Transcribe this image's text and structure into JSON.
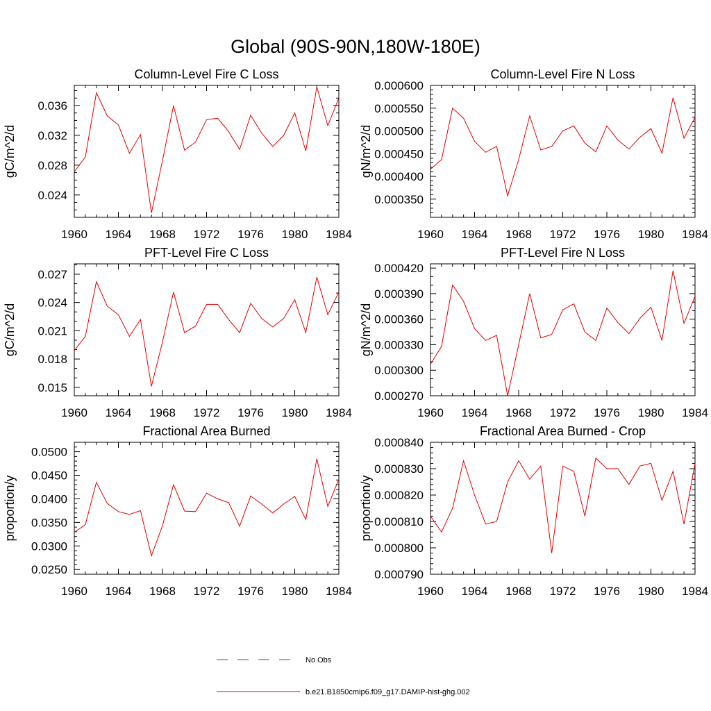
{
  "page_title": "Global (90S-90N,180W-180E)",
  "legend": {
    "entries": [
      {
        "label": "No Obs",
        "color": "#4a4a9a",
        "style": "dashed"
      },
      {
        "label": "b.e21.B1850cmip6.f09_g17.DAMIP-hist-ghg.002",
        "color": "#e00000",
        "style": "solid"
      }
    ]
  },
  "chart_data": [
    {
      "type": "line",
      "title": "Column-Level Fire C Loss",
      "ylabel": "gC/m^2/d",
      "xlim": [
        1960,
        1984
      ],
      "ylim": [
        0.021,
        0.0387
      ],
      "xticks": [
        1960,
        1964,
        1968,
        1972,
        1976,
        1980,
        1984
      ],
      "xtick_labels": [
        "1960",
        "1964",
        "1968",
        "1972",
        "1976",
        "1980",
        "1984"
      ],
      "yticks": [
        0.024,
        0.028,
        0.032,
        0.036
      ],
      "ytick_labels": [
        "0.024",
        "0.028",
        "0.032",
        "0.036"
      ],
      "ymin_ticks": [
        0.021,
        0.022,
        0.023,
        0.025,
        0.026,
        0.027,
        0.029,
        0.03,
        0.031,
        0.033,
        0.034,
        0.035,
        0.037,
        0.038
      ],
      "series": [
        {
          "color": "#e00000",
          "x": [
            1960,
            1961,
            1962,
            1963,
            1964,
            1965,
            1966,
            1967,
            1968,
            1969,
            1970,
            1971,
            1972,
            1973,
            1974,
            1975,
            1976,
            1977,
            1978,
            1979,
            1980,
            1981,
            1982,
            1983,
            1984
          ],
          "values": [
            0.0271,
            0.0291,
            0.0377,
            0.0346,
            0.0334,
            0.0296,
            0.0321,
            0.0216,
            0.0286,
            0.036,
            0.03,
            0.0311,
            0.0341,
            0.0343,
            0.0325,
            0.0301,
            0.0347,
            0.0323,
            0.0305,
            0.032,
            0.035,
            0.0299,
            0.0385,
            0.0333,
            0.037
          ]
        }
      ]
    },
    {
      "type": "line",
      "title": "Column-Level Fire N Loss",
      "ylabel": "gN/m^2/d",
      "xlim": [
        1960,
        1984
      ],
      "ylim": [
        0.00031,
        0.0006
      ],
      "xticks": [
        1960,
        1964,
        1968,
        1972,
        1976,
        1980,
        1984
      ],
      "xtick_labels": [
        "1960",
        "1964",
        "1968",
        "1972",
        "1976",
        "1980",
        "1984"
      ],
      "yticks": [
        0.00035,
        0.0004,
        0.00045,
        0.0005,
        0.00055,
        0.0006
      ],
      "ytick_labels": [
        "0.000350",
        "0.000400",
        "0.000450",
        "0.000500",
        "0.000550",
        "0.000600"
      ],
      "ymin_ticks": [
        0.00031,
        0.00032,
        0.00033,
        0.00034,
        0.00036,
        0.00037,
        0.00038,
        0.00039,
        0.00041,
        0.00042,
        0.00043,
        0.00044,
        0.00046,
        0.00047,
        0.00048,
        0.00049,
        0.00051,
        0.00052,
        0.00053,
        0.00054,
        0.00056,
        0.00057,
        0.00058,
        0.00059
      ],
      "series": [
        {
          "color": "#e00000",
          "x": [
            1960,
            1961,
            1962,
            1963,
            1964,
            1965,
            1966,
            1967,
            1968,
            1969,
            1970,
            1971,
            1972,
            1973,
            1974,
            1975,
            1976,
            1977,
            1978,
            1979,
            1980,
            1981,
            1982,
            1983,
            1984
          ],
          "values": [
            0.000416,
            0.000437,
            0.00055,
            0.000528,
            0.000477,
            0.000453,
            0.000466,
            0.000357,
            0.000437,
            0.000533,
            0.000458,
            0.000466,
            0.0005,
            0.000511,
            0.000473,
            0.000454,
            0.000511,
            0.00048,
            0.00046,
            0.000486,
            0.000505,
            0.000451,
            0.000573,
            0.000484,
            0.00053
          ]
        }
      ]
    },
    {
      "type": "line",
      "title": "PFT-Level Fire C Loss",
      "ylabel": "gC/m^2/d",
      "xlim": [
        1960,
        1984
      ],
      "ylim": [
        0.0141,
        0.0281
      ],
      "xticks": [
        1960,
        1964,
        1968,
        1972,
        1976,
        1980,
        1984
      ],
      "xtick_labels": [
        "1960",
        "1964",
        "1968",
        "1972",
        "1976",
        "1980",
        "1984"
      ],
      "yticks": [
        0.015,
        0.018,
        0.021,
        0.024,
        0.027
      ],
      "ytick_labels": [
        "0.015",
        "0.018",
        "0.021",
        "0.024",
        "0.027"
      ],
      "ymin_ticks": [
        0.016,
        0.017,
        0.019,
        0.02,
        0.022,
        0.023,
        0.025,
        0.026,
        0.028
      ],
      "series": [
        {
          "color": "#e00000",
          "x": [
            1960,
            1961,
            1962,
            1963,
            1964,
            1965,
            1966,
            1967,
            1968,
            1969,
            1970,
            1971,
            1972,
            1973,
            1974,
            1975,
            1976,
            1977,
            1978,
            1979,
            1980,
            1981,
            1982,
            1983,
            1984
          ],
          "values": [
            0.0189,
            0.0204,
            0.0262,
            0.0236,
            0.0227,
            0.0204,
            0.0222,
            0.0151,
            0.0198,
            0.0251,
            0.0208,
            0.0215,
            0.0238,
            0.0238,
            0.0222,
            0.0208,
            0.0239,
            0.0223,
            0.0214,
            0.0223,
            0.0243,
            0.0208,
            0.0267,
            0.0227,
            0.0251
          ]
        }
      ]
    },
    {
      "type": "line",
      "title": "PFT-Level Fire N Loss",
      "ylabel": "gN/m^2/d",
      "xlim": [
        1960,
        1984
      ],
      "ylim": [
        0.00027,
        0.000425
      ],
      "xticks": [
        1960,
        1964,
        1968,
        1972,
        1976,
        1980,
        1984
      ],
      "xtick_labels": [
        "1960",
        "1964",
        "1968",
        "1972",
        "1976",
        "1980",
        "1984"
      ],
      "yticks": [
        0.00027,
        0.0003,
        0.00033,
        0.00036,
        0.00039,
        0.00042
      ],
      "ytick_labels": [
        "0.000270",
        "0.000300",
        "0.000330",
        "0.000360",
        "0.000390",
        "0.000420"
      ],
      "ymin_ticks": [
        0.00028,
        0.00029,
        0.00031,
        0.00032,
        0.00034,
        0.00035,
        0.00037,
        0.00038,
        0.0004,
        0.00041
      ],
      "series": [
        {
          "color": "#e00000",
          "x": [
            1960,
            1961,
            1962,
            1963,
            1964,
            1965,
            1966,
            1967,
            1968,
            1969,
            1970,
            1971,
            1972,
            1973,
            1974,
            1975,
            1976,
            1977,
            1978,
            1979,
            1980,
            1981,
            1982,
            1983,
            1984
          ],
          "values": [
            0.000307,
            0.000328,
            0.0004,
            0.000381,
            0.000349,
            0.000335,
            0.000341,
            0.00027,
            0.00033,
            0.00039,
            0.000338,
            0.000342,
            0.000371,
            0.000378,
            0.000345,
            0.000335,
            0.000373,
            0.000356,
            0.000343,
            0.000361,
            0.000374,
            0.000335,
            0.000417,
            0.000355,
            0.000387
          ]
        }
      ]
    },
    {
      "type": "line",
      "title": "Fractional Area Burned",
      "ylabel": "proportion/y",
      "xlim": [
        1960,
        1984
      ],
      "ylim": [
        0.024,
        0.052
      ],
      "xticks": [
        1960,
        1964,
        1968,
        1972,
        1976,
        1980,
        1984
      ],
      "xtick_labels": [
        "1960",
        "1964",
        "1968",
        "1972",
        "1976",
        "1980",
        "1984"
      ],
      "yticks": [
        0.025,
        0.03,
        0.035,
        0.04,
        0.045,
        0.05
      ],
      "ytick_labels": [
        "0.0250",
        "0.0300",
        "0.0350",
        "0.0400",
        "0.0450",
        "0.0500"
      ],
      "ymin_ticks": [
        0.026,
        0.027,
        0.028,
        0.029,
        0.031,
        0.032,
        0.033,
        0.034,
        0.036,
        0.037,
        0.038,
        0.039,
        0.041,
        0.042,
        0.043,
        0.044,
        0.046,
        0.047,
        0.048,
        0.049,
        0.051
      ],
      "series": [
        {
          "color": "#e00000",
          "x": [
            1960,
            1961,
            1962,
            1963,
            1964,
            1965,
            1966,
            1967,
            1968,
            1969,
            1970,
            1971,
            1972,
            1973,
            1974,
            1975,
            1976,
            1977,
            1978,
            1979,
            1980,
            1981,
            1982,
            1983,
            1984
          ],
          "values": [
            0.0329,
            0.0345,
            0.0435,
            0.039,
            0.0373,
            0.0367,
            0.0375,
            0.0279,
            0.0343,
            0.043,
            0.0374,
            0.0373,
            0.0412,
            0.04,
            0.0392,
            0.0342,
            0.0406,
            0.0389,
            0.037,
            0.0389,
            0.0405,
            0.0356,
            0.0485,
            0.0384,
            0.0442
          ]
        }
      ]
    },
    {
      "type": "line",
      "title": "Fractional Area Burned - Crop",
      "ylabel": "proportion/y",
      "xlim": [
        1960,
        1984
      ],
      "ylim": [
        0.00079,
        0.00084
      ],
      "xticks": [
        1960,
        1964,
        1968,
        1972,
        1976,
        1980,
        1984
      ],
      "xtick_labels": [
        "1960",
        "1964",
        "1968",
        "1972",
        "1976",
        "1980",
        "1984"
      ],
      "yticks": [
        0.00079,
        0.0008,
        0.00081,
        0.00082,
        0.00083,
        0.00084
      ],
      "ytick_labels": [
        "0.000790",
        "0.000800",
        "0.000810",
        "0.000820",
        "0.000830",
        "0.000840"
      ],
      "ymin_ticks": [
        0.000792,
        0.000794,
        0.000796,
        0.000798,
        0.000802,
        0.000804,
        0.000806,
        0.000808,
        0.000812,
        0.000814,
        0.000816,
        0.000818,
        0.000822,
        0.000824,
        0.000826,
        0.000828,
        0.000832,
        0.000834,
        0.000836,
        0.000838
      ],
      "series": [
        {
          "color": "#e00000",
          "x": [
            1960,
            1961,
            1962,
            1963,
            1964,
            1965,
            1966,
            1967,
            1968,
            1969,
            1970,
            1971,
            1972,
            1973,
            1974,
            1975,
            1976,
            1977,
            1978,
            1979,
            1980,
            1981,
            1982,
            1983,
            1984
          ],
          "values": [
            0.000812,
            0.000806,
            0.000815,
            0.000833,
            0.00082,
            0.000809,
            0.00081,
            0.000825,
            0.000833,
            0.000826,
            0.000831,
            0.000798,
            0.000831,
            0.000829,
            0.000812,
            0.000834,
            0.00083,
            0.00083,
            0.000824,
            0.000831,
            0.000832,
            0.000818,
            0.000829,
            0.000809,
            0.000832
          ]
        }
      ]
    }
  ]
}
